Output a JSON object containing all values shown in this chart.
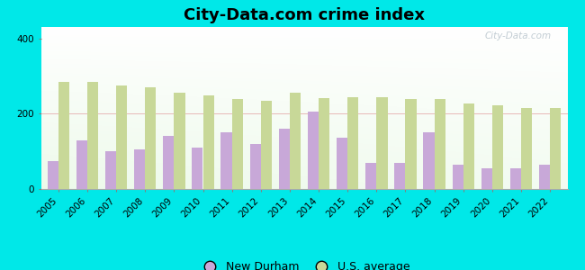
{
  "title": "City-Data.com crime index",
  "years": [
    2005,
    2006,
    2007,
    2008,
    2009,
    2010,
    2011,
    2012,
    2013,
    2014,
    2015,
    2016,
    2017,
    2018,
    2019,
    2020,
    2021,
    2022
  ],
  "new_durham": [
    75,
    130,
    100,
    105,
    140,
    110,
    150,
    120,
    160,
    205,
    135,
    70,
    70,
    150,
    65,
    55,
    55,
    65
  ],
  "us_average": [
    285,
    285,
    275,
    270,
    255,
    248,
    238,
    235,
    255,
    242,
    243,
    243,
    240,
    238,
    228,
    222,
    215,
    215
  ],
  "bar_color_city": "#c8a8d8",
  "bar_color_us": "#c8d898",
  "ylim": [
    0,
    430
  ],
  "yticks": [
    0,
    200,
    400
  ],
  "outer_bg": "#00e8e8",
  "legend_city": "New Durham",
  "legend_us": "U.S. average",
  "watermark": "City-Data.com",
  "bar_width": 0.38,
  "title_fontsize": 13,
  "tick_fontsize": 7.5,
  "legend_fontsize": 9
}
